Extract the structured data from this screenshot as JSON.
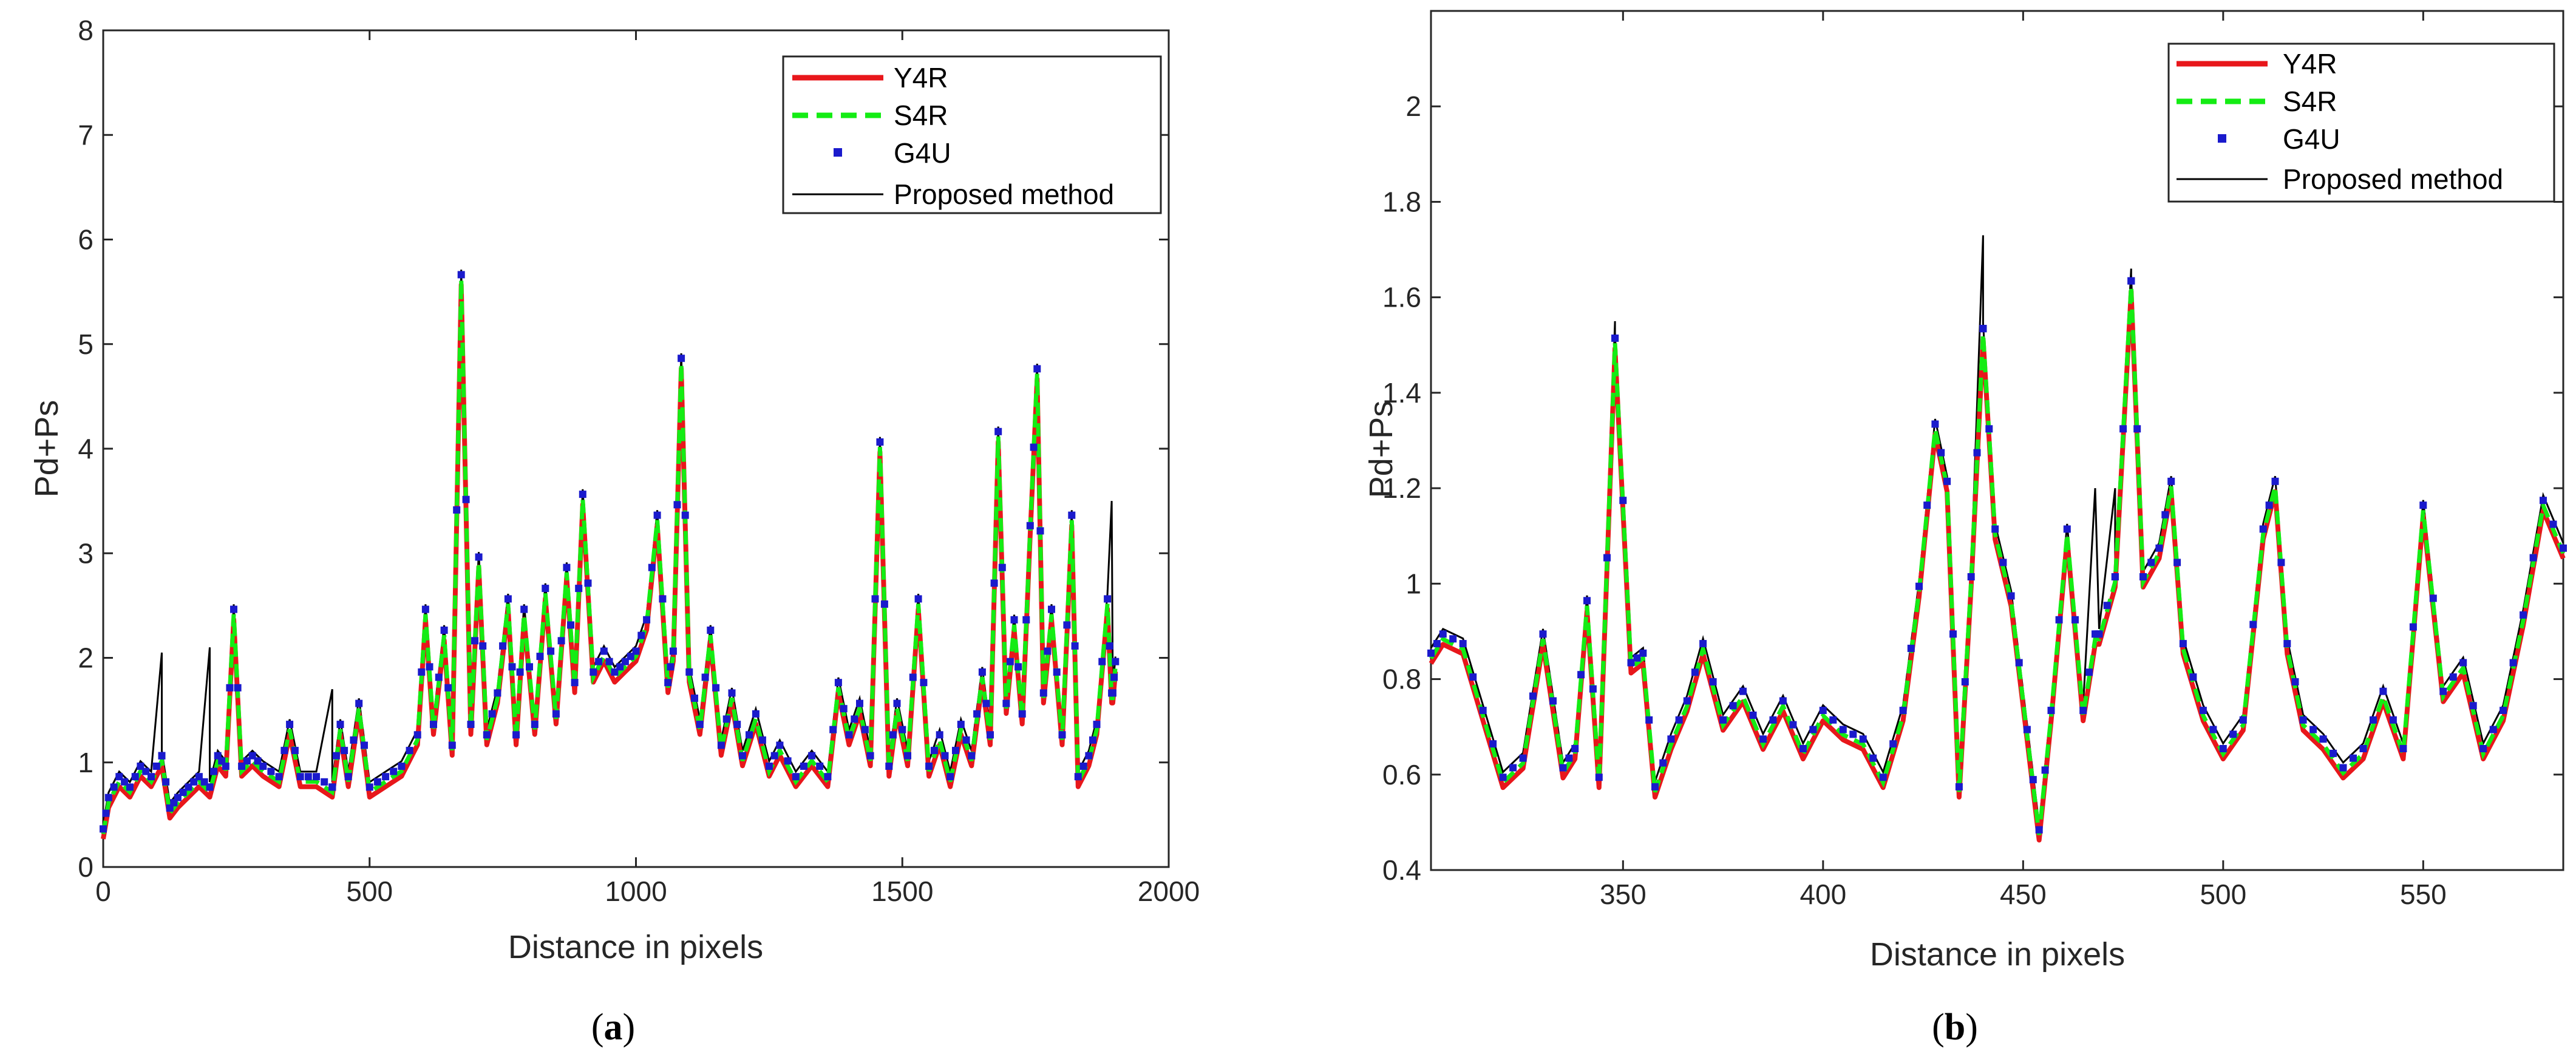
{
  "figure": {
    "caption_a_open": "(",
    "caption_a_letter": "a",
    "caption_a_close": ")",
    "caption_b_open": "(",
    "caption_b_letter": "b",
    "caption_b_close": ")"
  },
  "colors": {
    "Y4R": "#e8171b",
    "S4R": "#14ec14",
    "G4U": "#1a1acc",
    "Proposed method": "#000000"
  },
  "chart_data": [
    {
      "id": "a",
      "type": "line",
      "title": "",
      "xlabel": "Distance in pixels",
      "ylabel": "Pd+Ps",
      "xlim": [
        0,
        2000
      ],
      "ylim": [
        0,
        8
      ],
      "xticks": [
        0,
        500,
        1000,
        1500,
        2000
      ],
      "yticks": [
        0,
        1,
        2,
        3,
        4,
        5,
        6,
        7,
        8
      ],
      "grid": false,
      "legend_position": "top-right",
      "series": [
        {
          "name": "Y4R",
          "style": "solid red line"
        },
        {
          "name": "S4R",
          "style": "dashed green line"
        },
        {
          "name": "G4U",
          "style": "blue square markers"
        },
        {
          "name": "Proposed method",
          "style": "thin black line"
        }
      ],
      "x": [
        0,
        10,
        30,
        50,
        70,
        90,
        110,
        125,
        140,
        160,
        180,
        200,
        215,
        230,
        245,
        260,
        280,
        300,
        330,
        350,
        370,
        400,
        430,
        445,
        460,
        480,
        500,
        530,
        560,
        590,
        605,
        620,
        640,
        655,
        672,
        690,
        705,
        720,
        740,
        760,
        775,
        790,
        810,
        830,
        850,
        870,
        885,
        900,
        920,
        940,
        960,
        980,
        1000,
        1020,
        1040,
        1060,
        1070,
        1085,
        1100,
        1120,
        1140,
        1160,
        1180,
        1200,
        1225,
        1250,
        1270,
        1300,
        1330,
        1360,
        1380,
        1400,
        1420,
        1440,
        1458,
        1475,
        1490,
        1510,
        1530,
        1550,
        1570,
        1590,
        1610,
        1630,
        1650,
        1665,
        1680,
        1695,
        1710,
        1725,
        1740,
        1753,
        1765,
        1780,
        1800,
        1818,
        1830,
        1850,
        1865,
        1885,
        1895,
        1900
      ],
      "y": [
        0.3,
        0.6,
        0.8,
        0.7,
        0.9,
        0.8,
        1.0,
        0.5,
        0.6,
        0.7,
        0.8,
        0.7,
        1.0,
        0.9,
        2.4,
        0.9,
        1.0,
        0.9,
        0.8,
        1.3,
        0.8,
        0.8,
        0.7,
        1.3,
        0.8,
        1.5,
        0.7,
        0.8,
        0.9,
        1.2,
        2.4,
        1.3,
        2.2,
        1.1,
        5.6,
        1.3,
        2.9,
        1.2,
        1.6,
        2.5,
        1.2,
        2.4,
        1.3,
        2.6,
        1.4,
        2.8,
        1.7,
        3.5,
        1.8,
        2.0,
        1.8,
        1.9,
        2.0,
        2.3,
        3.3,
        1.7,
        2.0,
        4.8,
        1.8,
        1.3,
        2.2,
        1.1,
        1.6,
        1.0,
        1.4,
        0.9,
        1.1,
        0.8,
        1.0,
        0.8,
        1.7,
        1.2,
        1.5,
        1.0,
        4.0,
        0.9,
        1.5,
        1.0,
        2.5,
        0.9,
        1.2,
        0.8,
        1.3,
        1.0,
        1.8,
        1.2,
        4.1,
        1.5,
        2.3,
        1.4,
        3.2,
        4.7,
        1.6,
        2.4,
        1.2,
        3.3,
        0.8,
        1.0,
        1.3,
        2.5,
        1.6,
        1.9
      ],
      "proposed_overrides": [
        [
          110,
          2.05
        ],
        [
          200,
          2.1
        ],
        [
          430,
          1.7
        ],
        [
          1893,
          3.5
        ]
      ]
    },
    {
      "id": "b",
      "type": "line",
      "title": "",
      "xlabel": "Distance in pixels",
      "ylabel": "Pd+Ps",
      "xlim": [
        302,
        585
      ],
      "ylim": [
        0.4,
        2.2
      ],
      "xticks": [
        350,
        400,
        450,
        500,
        550
      ],
      "yticks": [
        0.4,
        0.6,
        0.8,
        1,
        1.2,
        1.4,
        1.6,
        1.8,
        2
      ],
      "grid": false,
      "legend_position": "top-right",
      "series": [
        {
          "name": "Y4R",
          "style": "solid red line"
        },
        {
          "name": "S4R",
          "style": "dashed green line"
        },
        {
          "name": "G4U",
          "style": "blue square markers"
        },
        {
          "name": "Proposed method",
          "style": "thin black line"
        }
      ],
      "x": [
        302,
        305,
        310,
        315,
        320,
        325,
        330,
        335,
        338,
        341,
        344,
        348,
        352,
        355,
        358,
        362,
        366,
        370,
        375,
        380,
        385,
        390,
        395,
        400,
        405,
        410,
        415,
        420,
        424,
        428,
        431,
        434,
        437,
        440,
        443,
        447,
        451,
        454,
        457,
        461,
        465,
        469,
        473,
        477,
        480,
        484,
        487,
        490,
        495,
        500,
        505,
        510,
        513,
        516,
        520,
        525,
        530,
        535,
        540,
        545,
        550,
        555,
        560,
        565,
        570,
        575,
        580,
        585
      ],
      "y": [
        0.84,
        0.88,
        0.86,
        0.72,
        0.58,
        0.62,
        0.88,
        0.6,
        0.64,
        0.95,
        0.58,
        1.5,
        0.82,
        0.84,
        0.56,
        0.66,
        0.74,
        0.86,
        0.7,
        0.76,
        0.66,
        0.74,
        0.64,
        0.72,
        0.68,
        0.66,
        0.58,
        0.72,
        0.98,
        1.32,
        1.2,
        0.56,
        1.0,
        1.52,
        1.1,
        0.96,
        0.68,
        0.47,
        0.72,
        1.1,
        0.72,
        0.88,
        1.0,
        1.62,
        1.0,
        1.06,
        1.2,
        0.86,
        0.72,
        0.64,
        0.7,
        1.1,
        1.2,
        0.86,
        0.7,
        0.66,
        0.6,
        0.64,
        0.76,
        0.64,
        1.15,
        0.76,
        0.82,
        0.64,
        0.72,
        0.92,
        1.16,
        1.06
      ],
      "proposed_overrides": [
        [
          348,
          1.55
        ],
        [
          440,
          1.73
        ],
        [
          468,
          1.2
        ],
        [
          473,
          1.2
        ],
        [
          477,
          1.66
        ]
      ]
    }
  ]
}
